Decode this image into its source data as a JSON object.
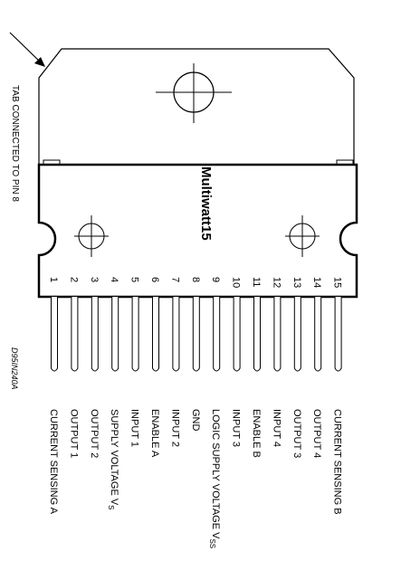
{
  "package_name": "Multiwatt15",
  "tab_note": "TAB CONNECTED TO PIN 8",
  "drawing_code": "D95IN240A",
  "pins": [
    {
      "number": "1",
      "label": "CURRENT SENSING A"
    },
    {
      "number": "2",
      "label": "OUTPUT 1"
    },
    {
      "number": "3",
      "label": "OUTPUT 2"
    },
    {
      "number": "4",
      "label": "SUPPLY VOLTAGE V",
      "sub": "S"
    },
    {
      "number": "5",
      "label": "INPUT 1"
    },
    {
      "number": "6",
      "label": "ENABLE A"
    },
    {
      "number": "7",
      "label": "INPUT 2"
    },
    {
      "number": "8",
      "label": "GND"
    },
    {
      "number": "9",
      "label": "LOGIC SUPPLY VOLTAGE V",
      "sub": "SS"
    },
    {
      "number": "10",
      "label": "INPUT 3"
    },
    {
      "number": "11",
      "label": "ENABLE B"
    },
    {
      "number": "12",
      "label": "INPUT 4"
    },
    {
      "number": "13",
      "label": "OUTPUT 3"
    },
    {
      "number": "14",
      "label": "OUTPUT 4"
    },
    {
      "number": "15",
      "label": "CURRENT SENSING B"
    }
  ]
}
